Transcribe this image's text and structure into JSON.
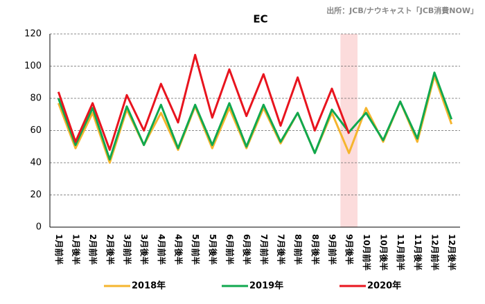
{
  "chart_data": {
    "type": "line",
    "title": "EC",
    "source": "出所：JCB/ナウキャスト「JCB消費NOW」",
    "categories": [
      "1月前半",
      "1月後半",
      "2月前半",
      "2月後半",
      "3月前半",
      "3月後半",
      "4月前半",
      "4月後半",
      "5月前半",
      "5月後半",
      "6月前半",
      "6月後半",
      "7月前半",
      "7月後半",
      "8月前半",
      "8月後半",
      "9月前半",
      "9月後半",
      "10月前半",
      "10月後半",
      "11月前半",
      "11月後半",
      "12月前半",
      "12月後半"
    ],
    "series": [
      {
        "name": "2018年",
        "color": "#f5b52e",
        "values": [
          77,
          49,
          71,
          40,
          73,
          51,
          71,
          48,
          75,
          49,
          74,
          49,
          74,
          52,
          71,
          46,
          71,
          46,
          74,
          53,
          78,
          53,
          94,
          64
        ]
      },
      {
        "name": "2019年",
        "color": "#10a84f",
        "values": [
          80,
          51,
          74,
          42,
          75,
          51,
          76,
          49,
          76,
          51,
          77,
          50,
          76,
          53,
          71,
          46,
          73,
          59,
          71,
          54,
          78,
          55,
          96,
          67
        ]
      },
      {
        "name": "2020年",
        "color": "#e8141e",
        "values": [
          84,
          53,
          77,
          48,
          82,
          60,
          89,
          65,
          107,
          68,
          98,
          69,
          95,
          63,
          93,
          60,
          86,
          58,
          null,
          null,
          null,
          null,
          null,
          null
        ]
      }
    ],
    "ylim": [
      0,
      120
    ],
    "yticks": [
      0,
      20,
      40,
      60,
      80,
      100,
      120
    ],
    "grid": true,
    "highlight_category": "9月後半",
    "highlight_color": "#fcdcdc",
    "legend": "bottom"
  }
}
